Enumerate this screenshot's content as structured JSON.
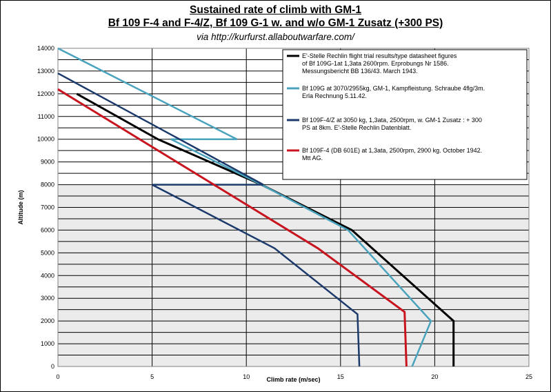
{
  "chart_data": {
    "type": "line",
    "title": "Sustained rate of climb with GM-1",
    "subtitle": "Bf 109 F-4 and F-4/Z, Bf 109 G-1 w. and w/o GM-1 Zusatz (+300 PS)",
    "source": "via http://kurfurst.allaboutwarfare.com/",
    "xlabel": "Climb rate (m/sec)",
    "ylabel": "Altitude (m)",
    "xlim": [
      0,
      25
    ],
    "ylim": [
      0,
      14000
    ],
    "xticks": [
      "0",
      "5",
      "10",
      "15",
      "20",
      "25"
    ],
    "yticks": [
      "0",
      "1000",
      "2000",
      "3000",
      "4000",
      "5000",
      "6000",
      "7000",
      "8000",
      "9000",
      "10000",
      "11000",
      "12000",
      "13000",
      "14000"
    ],
    "grid": true,
    "legend_position": "top-right",
    "series": [
      {
        "name": "E'-Stelle Rechlin flight trial results/type datasheet figures of Bf 109G-1at 1,3ata 2600rpm. Erprobungs Nr 1586. Messungsbericht BB 136/43. March 1943.",
        "color": "#000000",
        "points": [
          [
            21.0,
            0
          ],
          [
            21.0,
            2000
          ],
          [
            15.6,
            6000
          ],
          [
            10.8,
            8000
          ],
          [
            5.3,
            10000
          ],
          [
            1.0,
            12000
          ]
        ]
      },
      {
        "name": "Bf 109G at 3070/2955kg, GM-1, Kampfleistung. Schraube 4flg/3m. Erla Rechnung 5.11.42.",
        "color": "#4aa3bd",
        "points": [
          [
            18.8,
            0
          ],
          [
            19.8,
            2000
          ],
          [
            15.4,
            6000
          ],
          [
            10.8,
            8000
          ],
          [
            6.0,
            10000
          ],
          [
            9.5,
            10000
          ],
          [
            0,
            14000
          ]
        ]
      },
      {
        "name": "Bf 109F-4/Z at 3050 kg, 1,3ata, 2500rpm, w. GM-1 Zusatz : + 300 PS at 8km. E'-Stelle Rechlin Datenblatt.",
        "color": "#1b3a6b",
        "points": [
          [
            16.0,
            0
          ],
          [
            15.9,
            2300
          ],
          [
            11.5,
            5200
          ],
          [
            5.0,
            8000
          ],
          [
            10.9,
            8000
          ],
          [
            0,
            12900
          ]
        ]
      },
      {
        "name": "Bf 109F-4 (DB 601E) at 1,3ata, 2500rpm, 2900 kg. October 1942. Mtt AG.",
        "color": "#c8141e",
        "points": [
          [
            18.5,
            0
          ],
          [
            18.4,
            2400
          ],
          [
            13.8,
            5200
          ],
          [
            0,
            12200
          ]
        ]
      }
    ]
  }
}
